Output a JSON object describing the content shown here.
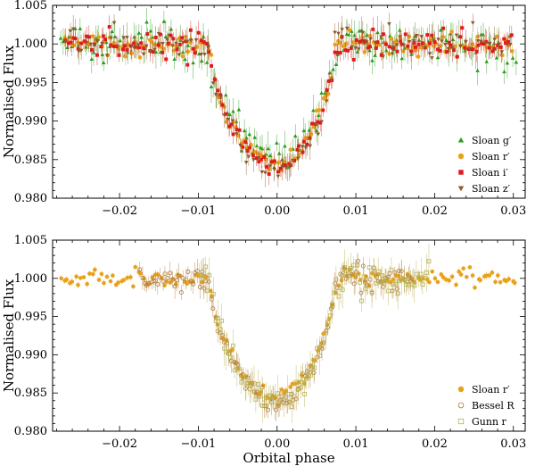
{
  "chart_data": [
    {
      "type": "scatter",
      "title": "",
      "xlabel": "",
      "ylabel": "Normalised Flux",
      "xlim": [
        -0.0285,
        0.0315
      ],
      "ylim": [
        0.98,
        1.005
      ],
      "xticks": [
        -0.02,
        -0.01,
        0.0,
        0.01,
        0.02,
        0.03
      ],
      "xtick_labels": [
        "−0.02",
        "−0.01",
        "0.00",
        "0.01",
        "0.02",
        "0.03"
      ],
      "yticks": [
        0.98,
        0.985,
        0.99,
        0.995,
        1.0,
        1.005
      ],
      "ytick_labels": [
        "0.980",
        "0.985",
        "0.990",
        "0.995",
        "1.000",
        "1.005"
      ],
      "transit": {
        "ingress_start": -0.0085,
        "egress_end": 0.0073,
        "depth": 0.0156,
        "center": 0.0
      },
      "legend_position": "bottom-right",
      "series": [
        {
          "name": "Sloan g′",
          "marker": "triangle-up",
          "color": "#2a9d1f",
          "x_range": [
            -0.0275,
            0.0305
          ],
          "depth": 0.0146,
          "scatter": 0.0013,
          "errorbar": 0.0016,
          "points": 170
        },
        {
          "name": "Sloan r′",
          "marker": "circle",
          "color": "#e8a21a",
          "x_range": [
            -0.027,
            0.03
          ],
          "depth": 0.0157,
          "scatter": 0.0007,
          "errorbar": 0.0009,
          "points": 150
        },
        {
          "name": "Sloan i′",
          "marker": "square",
          "color": "#e01a1a",
          "x_range": [
            -0.027,
            0.03
          ],
          "depth": 0.0162,
          "scatter": 0.0008,
          "errorbar": 0.0011,
          "points": 165
        },
        {
          "name": "Sloan z′",
          "marker": "triangle-down",
          "color": "#8a5a2a",
          "x_range": [
            -0.027,
            0.03
          ],
          "depth": 0.0166,
          "scatter": 0.001,
          "errorbar": 0.0014,
          "points": 110
        }
      ]
    },
    {
      "type": "scatter",
      "title": "",
      "xlabel": "Orbital phase",
      "ylabel": "Normalised Flux",
      "xlim": [
        -0.0285,
        0.0315
      ],
      "ylim": [
        0.98,
        1.005
      ],
      "xticks": [
        -0.02,
        -0.01,
        0.0,
        0.01,
        0.02,
        0.03
      ],
      "xtick_labels": [
        "−0.02",
        "−0.01",
        "0.00",
        "0.01",
        "0.02",
        "0.03"
      ],
      "yticks": [
        0.98,
        0.985,
        0.99,
        0.995,
        1.0,
        1.005
      ],
      "ytick_labels": [
        "0.980",
        "0.985",
        "0.990",
        "0.995",
        "1.000",
        "1.005"
      ],
      "transit": {
        "ingress_start": -0.0085,
        "egress_end": 0.0073,
        "depth": 0.0156,
        "center": 0.0
      },
      "legend_position": "bottom-right",
      "series": [
        {
          "name": "Sloan r′",
          "marker": "circle",
          "color": "#e8a21a",
          "x_range": [
            -0.0275,
            0.0305
          ],
          "depth": 0.0155,
          "scatter": 0.0006,
          "errorbar": 0.0004,
          "points": 160
        },
        {
          "name": "Bessel R",
          "marker": "open-circle",
          "color": "#b07a3a",
          "x_range": [
            -0.0175,
            0.0175
          ],
          "depth": 0.0164,
          "scatter": 0.0008,
          "errorbar": 0.0012,
          "points": 120
        },
        {
          "name": "Gunn r",
          "marker": "open-square",
          "color": "#b9b050",
          "x_range": [
            -0.01,
            0.0195
          ],
          "depth": 0.016,
          "scatter": 0.0011,
          "errorbar": 0.0018,
          "points": 110
        }
      ]
    }
  ]
}
